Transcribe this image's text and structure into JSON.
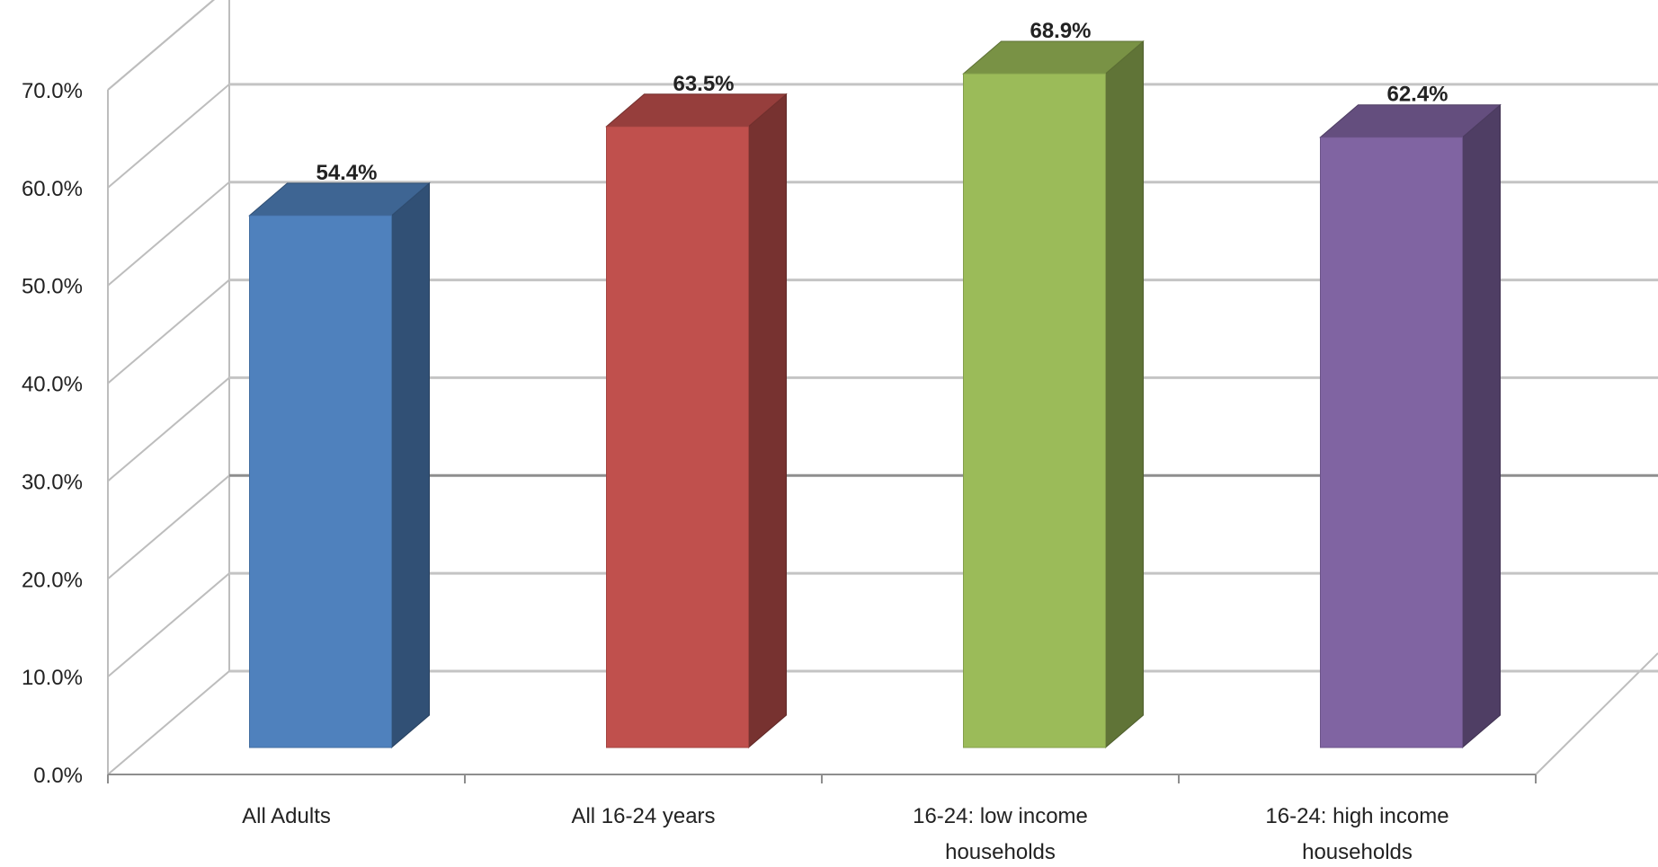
{
  "chart_data": {
    "type": "bar",
    "categories": [
      "All Adults",
      "All 16-24 years",
      "16-24: low income households",
      "16-24: high income households"
    ],
    "category_lines": [
      [
        "All Adults"
      ],
      [
        "All 16-24 years"
      ],
      [
        "16-24: low income",
        "households"
      ],
      [
        "16-24: high income",
        "households"
      ]
    ],
    "values": [
      54.4,
      63.5,
      68.9,
      62.4
    ],
    "data_labels": [
      "54.4%",
      "63.5%",
      "68.9%",
      "62.4%"
    ],
    "colors": [
      "#4f81bd",
      "#c0504d",
      "#9bbb59",
      "#8064a2"
    ],
    "ylim": [
      0,
      70
    ],
    "yticks": [
      0,
      10,
      20,
      30,
      40,
      50,
      60,
      70
    ],
    "ytick_labels": [
      "0.0%",
      "10.0%",
      "20.0%",
      "30.0%",
      "40.0%",
      "50.0%",
      "60.0%",
      "70.0%"
    ],
    "grid": true,
    "style": "3d-column",
    "title": "",
    "xlabel": "",
    "ylabel": ""
  }
}
